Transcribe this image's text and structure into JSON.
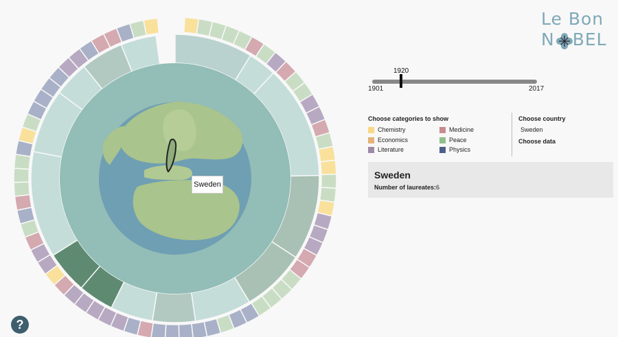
{
  "logo": {
    "line1": "Le Bon",
    "line2_pre": "N",
    "line2_post": "BEL"
  },
  "slider": {
    "value": "1920",
    "min": "1901",
    "max": "2017"
  },
  "categories_header": "Choose categories to show",
  "categories": [
    {
      "label": "Chemistry",
      "color": "#f9d886"
    },
    {
      "label": "Medicine",
      "color": "#c88a8f"
    },
    {
      "label": "Economics",
      "color": "#e6b27a"
    },
    {
      "label": "Peace",
      "color": "#8fbf8a"
    },
    {
      "label": "Literature",
      "color": "#9f8aa6"
    },
    {
      "label": "Physics",
      "color": "#4c5f8a"
    }
  ],
  "country_header": "Choose country",
  "country_value": "Sweden",
  "data_header": "Choose data",
  "info": {
    "title": "Sweden",
    "label": "Number of laureates:",
    "value": "6"
  },
  "tooltip": "Sweden",
  "help": "?"
}
